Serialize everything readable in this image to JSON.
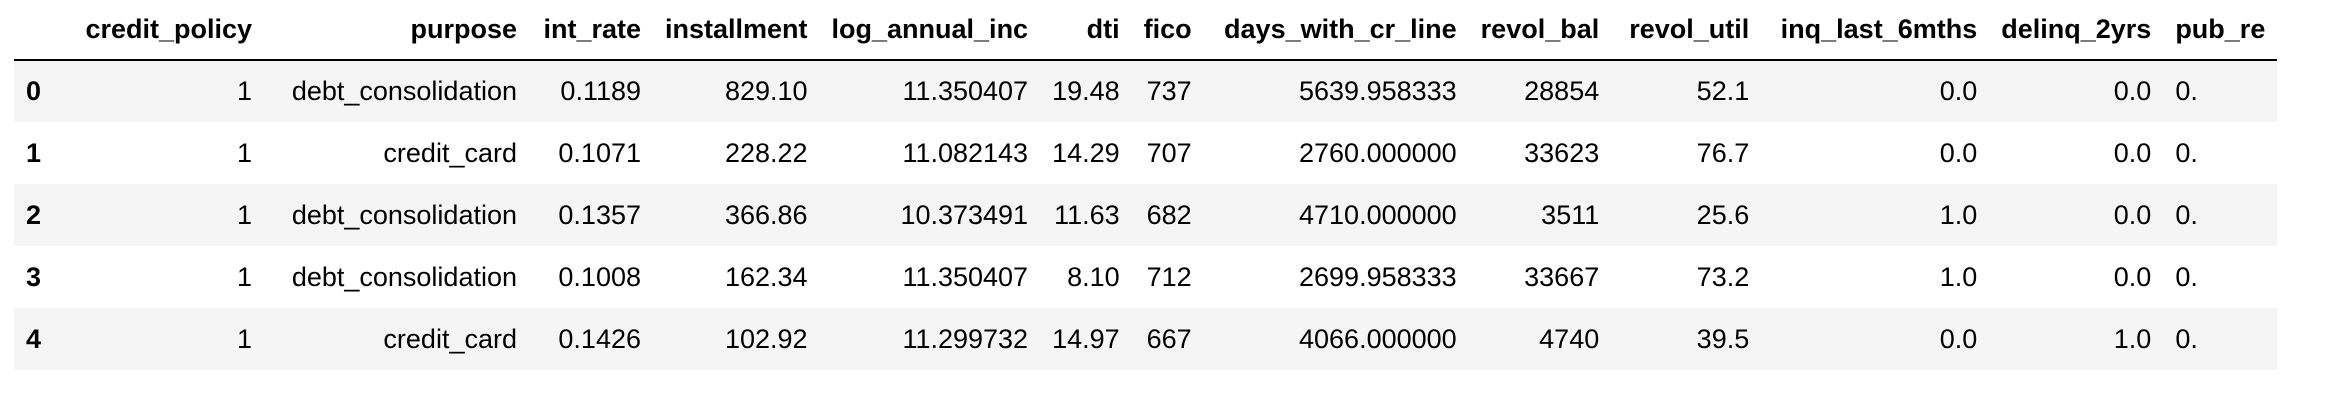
{
  "table": {
    "index_header": "",
    "columns": [
      "credit_policy",
      "purpose",
      "int_rate",
      "installment",
      "log_annual_inc",
      "dti",
      "fico",
      "days_with_cr_line",
      "revol_bal",
      "revol_util",
      "inq_last_6mths",
      "delinq_2yrs",
      "pub_re"
    ],
    "rows": [
      {
        "index": "0",
        "cells": [
          "1",
          "debt_consolidation",
          "0.1189",
          "829.10",
          "11.350407",
          "19.48",
          "737",
          "5639.958333",
          "28854",
          "52.1",
          "0.0",
          "0.0",
          "0."
        ]
      },
      {
        "index": "1",
        "cells": [
          "1",
          "credit_card",
          "0.1071",
          "228.22",
          "11.082143",
          "14.29",
          "707",
          "2760.000000",
          "33623",
          "76.7",
          "0.0",
          "0.0",
          "0."
        ]
      },
      {
        "index": "2",
        "cells": [
          "1",
          "debt_consolidation",
          "0.1357",
          "366.86",
          "10.373491",
          "11.63",
          "682",
          "4710.000000",
          "3511",
          "25.6",
          "1.0",
          "0.0",
          "0."
        ]
      },
      {
        "index": "3",
        "cells": [
          "1",
          "debt_consolidation",
          "0.1008",
          "162.34",
          "11.350407",
          "8.10",
          "712",
          "2699.958333",
          "33667",
          "73.2",
          "1.0",
          "0.0",
          "0."
        ]
      },
      {
        "index": "4",
        "cells": [
          "1",
          "credit_card",
          "0.1426",
          "102.92",
          "11.299732",
          "14.97",
          "667",
          "4066.000000",
          "4740",
          "39.5",
          "0.0",
          "1.0",
          "0."
        ]
      }
    ]
  }
}
